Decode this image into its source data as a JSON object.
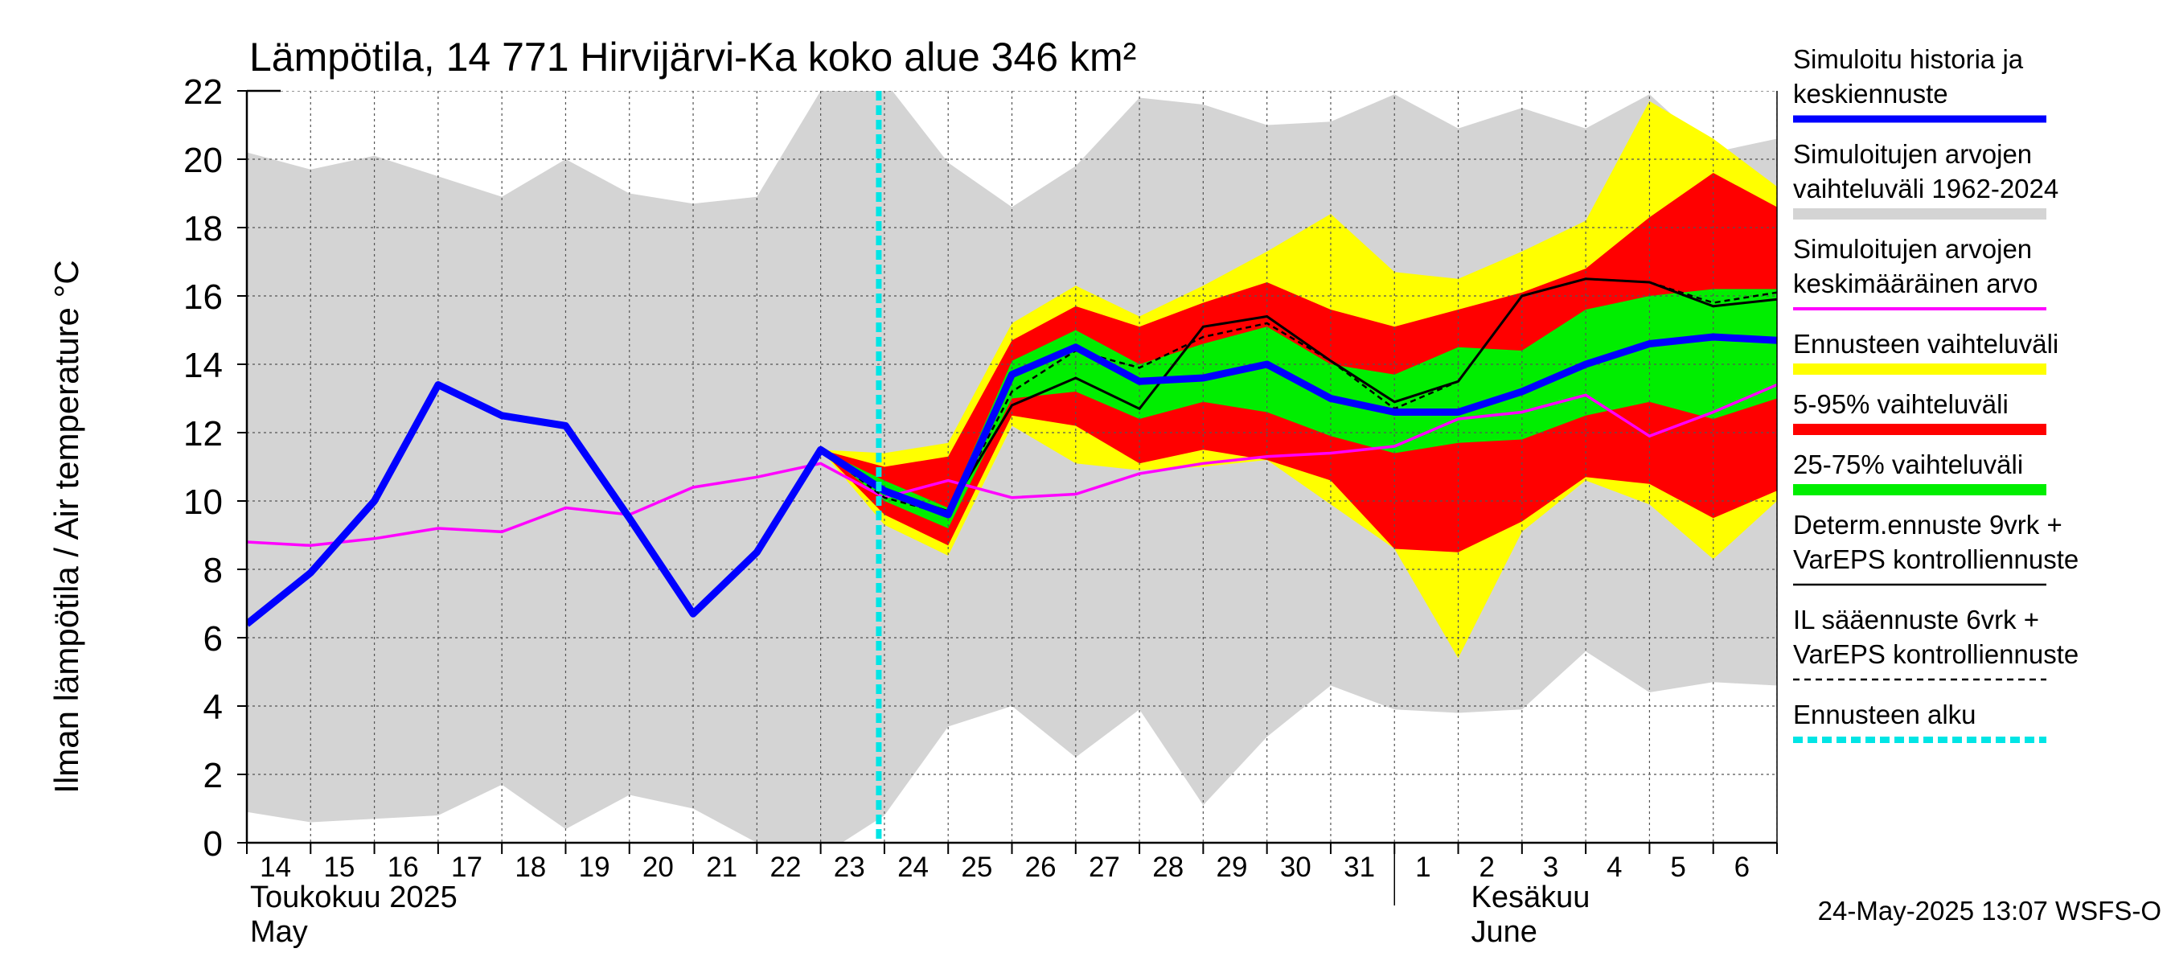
{
  "chart_data": {
    "type": "area",
    "title": "Lämpötila, 14 771 Hirvijärvi-Ka koko alue 346 km²",
    "ylabel": "Ilman lämpötila / Air temperature   °C",
    "ylim": [
      0,
      22
    ],
    "yticks": [
      0,
      2,
      4,
      6,
      8,
      10,
      12,
      14,
      16,
      18,
      20,
      22
    ],
    "grid": true,
    "legend_position": "right",
    "x_unit": "day index (0 = 14 May 2025)",
    "xlim": [
      0,
      24
    ],
    "x_tick_labels": [
      "14",
      "15",
      "16",
      "17",
      "18",
      "19",
      "20",
      "21",
      "22",
      "23",
      "24",
      "25",
      "26",
      "27",
      "28",
      "29",
      "30",
      "31",
      "1",
      "2",
      "3",
      "4",
      "5",
      "6"
    ],
    "month_labels": [
      {
        "x": 0,
        "fi": "Toukokuu  2025",
        "en": "May"
      },
      {
        "x": 19,
        "fi": "Kesäkuu",
        "en": "June"
      }
    ],
    "month_divider_x": 18,
    "forecast_start_x": 10,
    "timestamp": "24-May-2025 13:07 WSFS-O",
    "colors": {
      "hist_range": "#d4d4d4",
      "ens_range": "#ffff00",
      "p5_95": "#ff0000",
      "p25_75": "#00ee00",
      "simulated": "#0000ff",
      "mean": "#ff00ff",
      "determ": "#000000",
      "il": "#000000",
      "forecast_start": "#00e5e5"
    },
    "series": {
      "hist_range": {
        "x": [
          0,
          1,
          2,
          3,
          4,
          5,
          6,
          7,
          8,
          9,
          10,
          11,
          12,
          13,
          14,
          15,
          16,
          17,
          18,
          19,
          20,
          21,
          22,
          23,
          24
        ],
        "upper": [
          20.2,
          19.7,
          20.1,
          19.5,
          18.9,
          20.0,
          19.0,
          18.7,
          18.9,
          22.0,
          22.3,
          19.9,
          18.6,
          19.8,
          21.8,
          21.6,
          21.0,
          21.1,
          21.9,
          20.9,
          21.5,
          20.9,
          21.9,
          20.2,
          20.6
        ],
        "lower": [
          0.9,
          0.6,
          0.7,
          0.8,
          1.7,
          0.4,
          1.4,
          1.0,
          0.0,
          -0.4,
          0.8,
          3.4,
          4.0,
          2.5,
          3.9,
          1.1,
          3.1,
          4.6,
          3.9,
          3.8,
          3.9,
          5.6,
          4.4,
          4.7,
          4.6
        ]
      },
      "ens_range": {
        "x": [
          9,
          10,
          11,
          12,
          13,
          14,
          15,
          16,
          17,
          18,
          19,
          20,
          21,
          22,
          23,
          24
        ],
        "upper": [
          11.5,
          11.4,
          11.7,
          15.2,
          16.3,
          15.4,
          16.3,
          17.3,
          18.4,
          16.7,
          16.5,
          17.3,
          18.2,
          21.7,
          20.6,
          19.2
        ],
        "lower": [
          11.5,
          9.3,
          8.4,
          12.2,
          11.1,
          10.9,
          11.0,
          11.2,
          9.9,
          8.6,
          5.4,
          9.1,
          10.6,
          9.9,
          8.3,
          10.0
        ]
      },
      "p5_95": {
        "x": [
          9,
          10,
          11,
          12,
          13,
          14,
          15,
          16,
          17,
          18,
          19,
          20,
          21,
          22,
          23,
          24
        ],
        "upper": [
          11.5,
          11.0,
          11.3,
          14.7,
          15.7,
          15.1,
          15.8,
          16.4,
          15.6,
          15.1,
          15.6,
          16.1,
          16.8,
          18.3,
          19.6,
          18.6
        ],
        "lower": [
          11.5,
          9.6,
          8.7,
          12.5,
          12.2,
          11.1,
          11.5,
          11.2,
          10.6,
          8.6,
          8.5,
          9.4,
          10.7,
          10.5,
          9.5,
          10.3
        ]
      },
      "p25_75": {
        "x": [
          9,
          10,
          11,
          12,
          13,
          14,
          15,
          16,
          17,
          18,
          19,
          20,
          21,
          22,
          23,
          24
        ],
        "upper": [
          11.5,
          10.6,
          9.8,
          14.1,
          15.0,
          14.0,
          14.6,
          15.1,
          14.0,
          13.7,
          14.5,
          14.4,
          15.6,
          16.0,
          16.2,
          16.2
        ],
        "lower": [
          11.5,
          10.0,
          9.2,
          13.0,
          13.2,
          12.4,
          12.9,
          12.6,
          11.9,
          11.4,
          11.7,
          11.8,
          12.5,
          12.9,
          12.4,
          13.0
        ]
      },
      "simulated": {
        "x": [
          0,
          1,
          2,
          3,
          4,
          5,
          6,
          7,
          8,
          9,
          10,
          11,
          12,
          13,
          14,
          15,
          16,
          17,
          18,
          19,
          20,
          21,
          22,
          23,
          24
        ],
        "y": [
          6.4,
          7.9,
          10.0,
          13.4,
          12.5,
          12.2,
          9.5,
          6.7,
          8.5,
          11.5,
          10.3,
          9.6,
          13.7,
          14.5,
          13.5,
          13.6,
          14.0,
          13.0,
          12.6,
          12.6,
          13.2,
          14.0,
          14.6,
          14.8,
          14.7
        ]
      },
      "mean": {
        "x": [
          0,
          1,
          2,
          3,
          4,
          5,
          6,
          7,
          8,
          9,
          10,
          11,
          12,
          13,
          14,
          15,
          16,
          17,
          18,
          19,
          20,
          21,
          22,
          23,
          24
        ],
        "y": [
          8.8,
          8.7,
          8.9,
          9.2,
          9.1,
          9.8,
          9.6,
          10.4,
          10.7,
          11.1,
          10.1,
          10.6,
          10.1,
          10.2,
          10.8,
          11.1,
          11.3,
          11.4,
          11.6,
          12.4,
          12.6,
          13.1,
          11.9,
          12.6,
          13.4
        ]
      },
      "determ": {
        "x": [
          9,
          10,
          11,
          12,
          13,
          14,
          15,
          16,
          17,
          18,
          19,
          20,
          21,
          22,
          23,
          24
        ],
        "y": [
          11.5,
          10.3,
          9.7,
          12.8,
          13.6,
          12.7,
          15.1,
          15.4,
          14.1,
          12.9,
          13.5,
          16.0,
          16.5,
          16.4,
          15.7,
          15.9
        ]
      },
      "il": {
        "x": [
          9,
          10,
          11,
          12,
          13,
          14,
          15,
          16,
          17,
          18,
          19,
          20,
          21,
          22,
          23,
          24
        ],
        "y": [
          11.5,
          10.1,
          9.6,
          13.2,
          14.4,
          13.9,
          14.8,
          15.2,
          14.1,
          12.7,
          13.5,
          16.0,
          16.5,
          16.4,
          15.8,
          16.1
        ]
      }
    },
    "legend": [
      {
        "key": "simulated",
        "label": "Simuloitu historia ja keskiennuste",
        "lines": [
          "Simuloitu historia ja",
          "keskiennuste"
        ],
        "style": "thick-line",
        "color": "#0000ff"
      },
      {
        "key": "hist_range",
        "label": "Simuloitujen arvojen vaihteluväli 1962-2024",
        "lines": [
          "Simuloitujen arvojen",
          "vaihteluväli 1962-2024"
        ],
        "style": "band",
        "color": "#d4d4d4"
      },
      {
        "key": "mean",
        "label": "Simuloitujen arvojen keskimääräinen arvo",
        "lines": [
          "Simuloitujen arvojen",
          "keskimääräinen arvo"
        ],
        "style": "line",
        "color": "#ff00ff"
      },
      {
        "key": "ens_range",
        "label": "Ennusteen vaihteluväli",
        "lines": [
          "Ennusteen vaihteluväli"
        ],
        "style": "band",
        "color": "#ffff00"
      },
      {
        "key": "p5_95",
        "label": "5-95% vaihteluväli",
        "lines": [
          "5-95% vaihteluväli"
        ],
        "style": "band",
        "color": "#ff0000"
      },
      {
        "key": "p25_75",
        "label": "25-75% vaihteluväli",
        "lines": [
          "25-75% vaihteluväli"
        ],
        "style": "band",
        "color": "#00ee00"
      },
      {
        "key": "determ",
        "label": "Determ.ennuste 9vrk + VarEPS kontrolliennuste",
        "lines": [
          "Determ.ennuste 9vrk +",
          "VarEPS kontrolliennuste"
        ],
        "style": "thin-line",
        "color": "#000000"
      },
      {
        "key": "il",
        "label": "IL sääennuste 6vrk + VarEPS kontrolliennuste",
        "lines": [
          "IL sääennuste 6vrk  +",
          "  VarEPS kontrolliennuste"
        ],
        "style": "dashed-line",
        "color": "#000000"
      },
      {
        "key": "forecast_start",
        "label": "Ennusteen alku",
        "lines": [
          "Ennusteen alku"
        ],
        "style": "dotted-thick",
        "color": "#00e5e5"
      }
    ]
  }
}
